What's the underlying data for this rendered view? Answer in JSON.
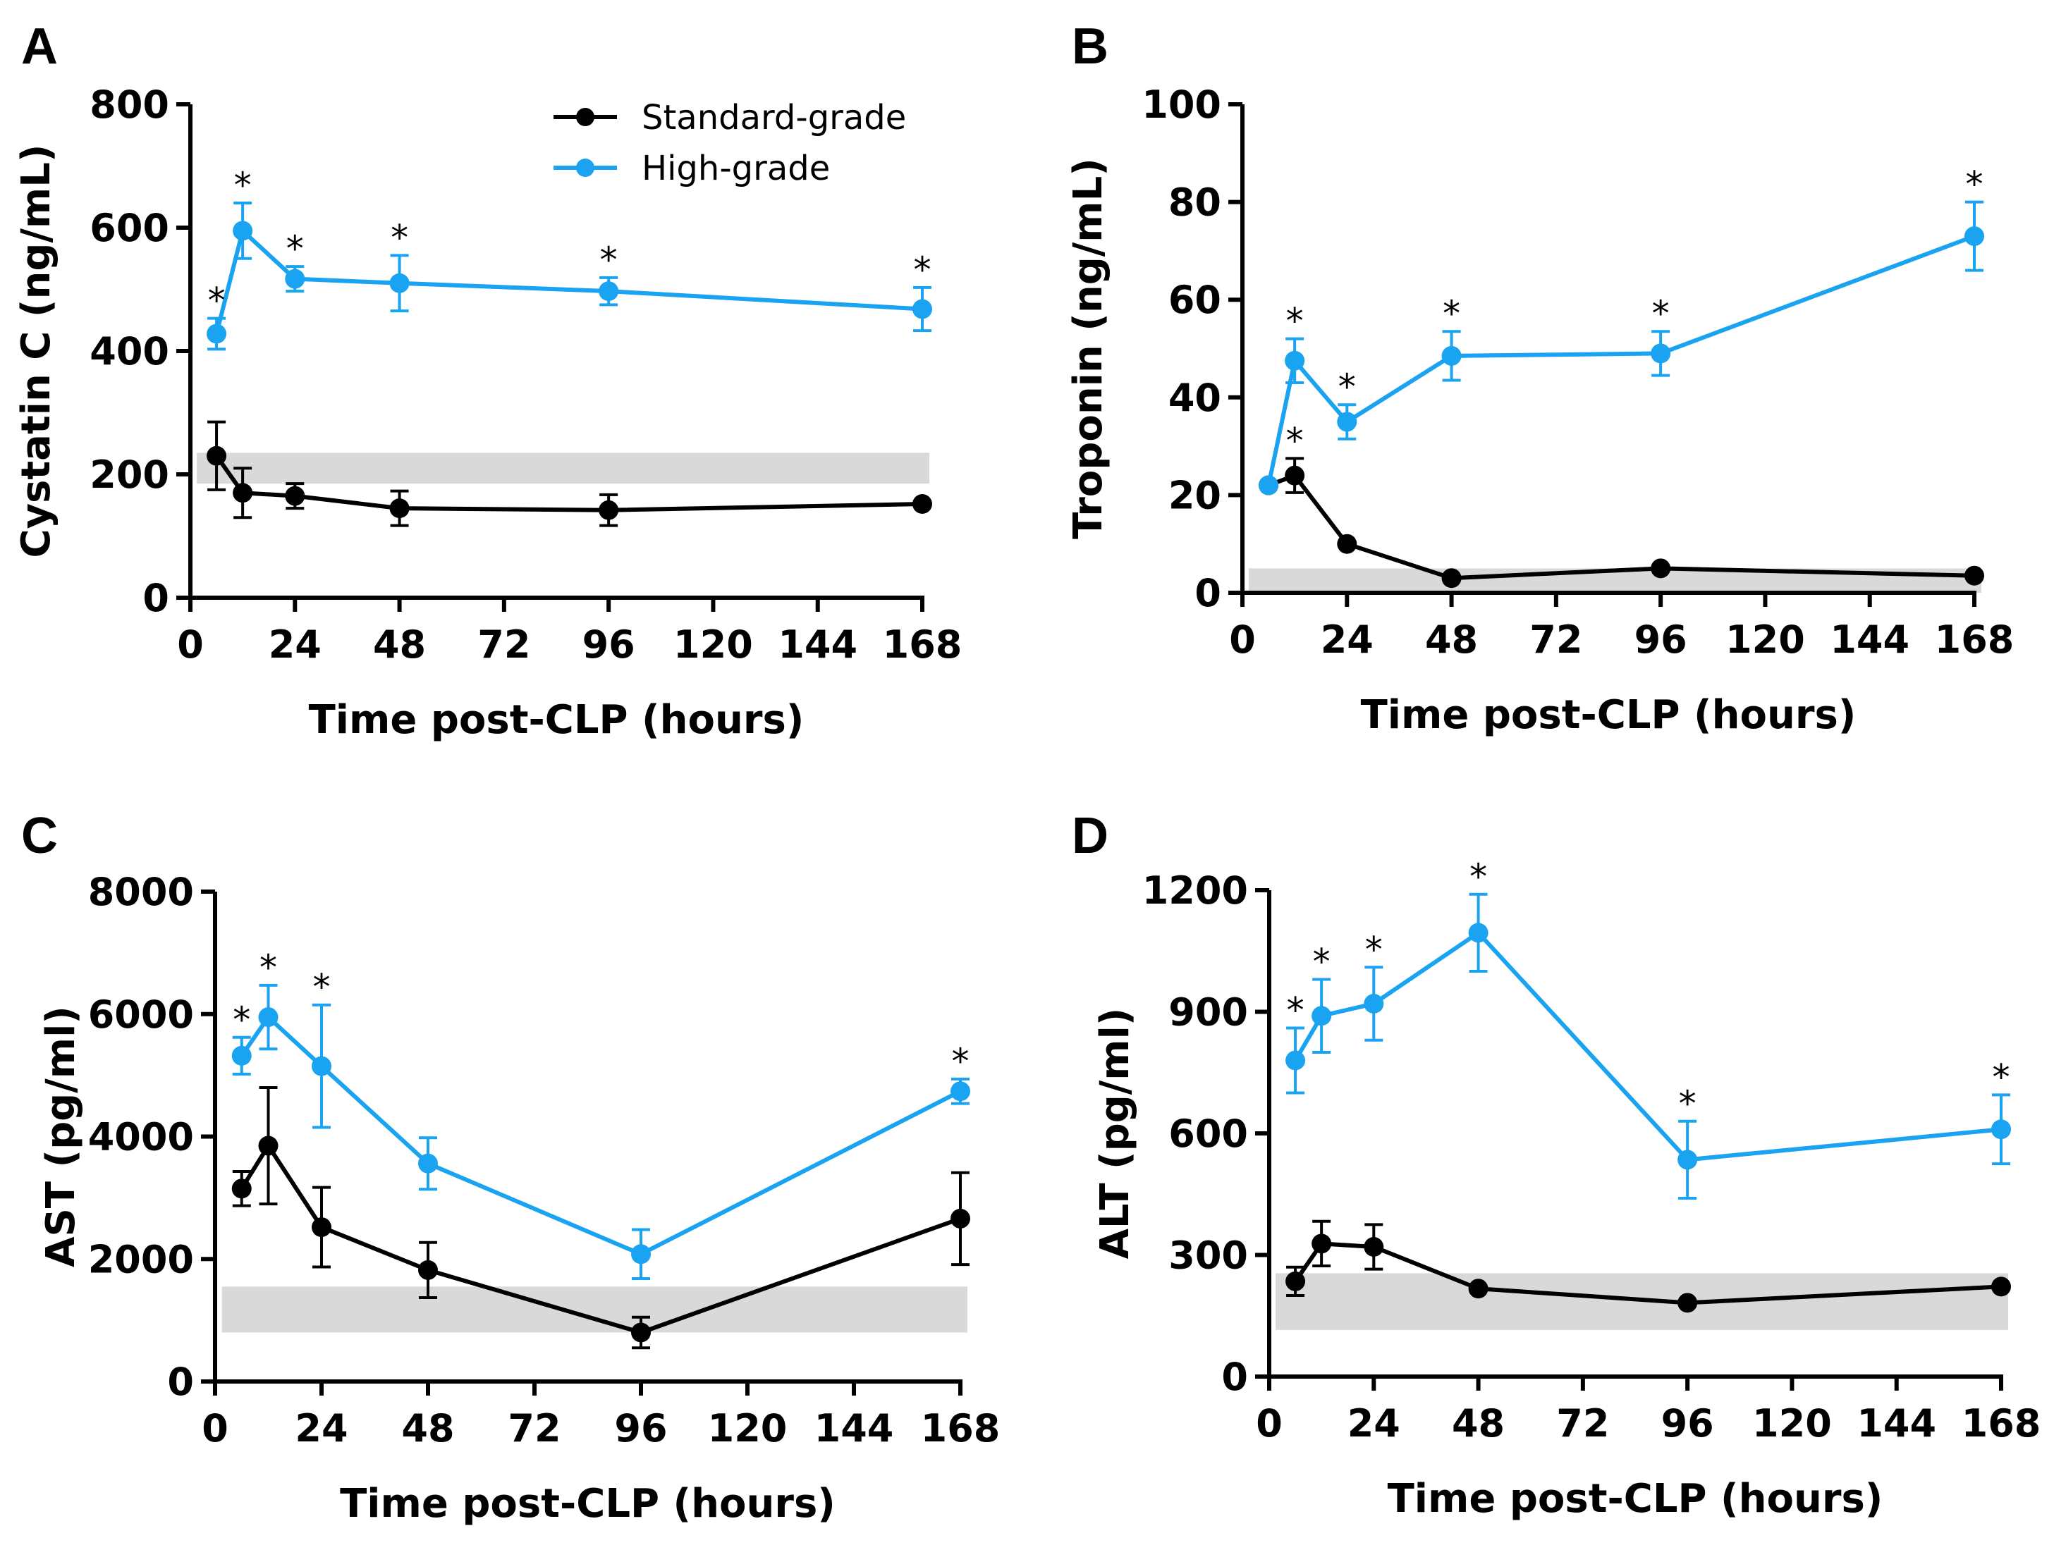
{
  "colors": {
    "standard": "#000000",
    "high": "#1aa3f0",
    "band": "#d9d9d9",
    "axis": "#000000"
  },
  "legend": [
    {
      "name": "Standard-grade",
      "color": "#000000"
    },
    {
      "name": "High-grade",
      "color": "#1aa3f0"
    }
  ],
  "chart_data": [
    {
      "panel": "A",
      "type": "line",
      "xlabel": "Time post-CLP (hours)",
      "ylabel": "Cystatin C (ng/mL)",
      "xlim": [
        0,
        168
      ],
      "ylim": [
        0,
        800
      ],
      "xticks": [
        0,
        24,
        48,
        72,
        96,
        120,
        144,
        168
      ],
      "yticks": [
        0,
        200,
        400,
        600,
        800
      ],
      "normal_range": [
        185,
        235
      ],
      "legend_position": "top-center",
      "series": [
        {
          "name": "Standard-grade",
          "x": [
            6,
            12,
            24,
            48,
            96,
            168
          ],
          "y": [
            230,
            170,
            165,
            145,
            142,
            152
          ],
          "err": [
            55,
            40,
            20,
            28,
            25,
            5
          ],
          "sig": []
        },
        {
          "name": "High-grade",
          "x": [
            6,
            12,
            24,
            48,
            96,
            168
          ],
          "y": [
            428,
            595,
            517,
            510,
            497,
            468
          ],
          "err": [
            25,
            45,
            20,
            45,
            22,
            35
          ],
          "sig": [
            6,
            12,
            24,
            48,
            96,
            168
          ]
        }
      ]
    },
    {
      "panel": "B",
      "type": "line",
      "xlabel": "Time post-CLP (hours)",
      "ylabel": "Troponin (ng/mL)",
      "xlim": [
        0,
        168
      ],
      "ylim": [
        0,
        100
      ],
      "xticks": [
        0,
        24,
        48,
        72,
        96,
        120,
        144,
        168
      ],
      "yticks": [
        0,
        20,
        40,
        60,
        80,
        100
      ],
      "normal_range": [
        0,
        5
      ],
      "series": [
        {
          "name": "Standard-grade",
          "x": [
            6,
            12,
            24,
            48,
            96,
            168
          ],
          "y": [
            22,
            24,
            10,
            3,
            5,
            3.5
          ],
          "err": [
            0.5,
            3.5,
            0.5,
            0.5,
            0.5,
            0.5
          ],
          "sig": [
            12
          ]
        },
        {
          "name": "High-grade",
          "x": [
            6,
            12,
            24,
            48,
            96,
            168
          ],
          "y": [
            22,
            47.5,
            35,
            48.5,
            49,
            73
          ],
          "err": [
            0.5,
            4.5,
            3.5,
            5,
            4.5,
            7
          ],
          "sig": [
            12,
            24,
            48,
            96,
            168
          ]
        }
      ]
    },
    {
      "panel": "C",
      "type": "line",
      "xlabel": "Time post-CLP (hours)",
      "ylabel": "AST (pg/ml)",
      "xlim": [
        0,
        168
      ],
      "ylim": [
        0,
        8000
      ],
      "xticks": [
        0,
        24,
        48,
        72,
        96,
        120,
        144,
        168
      ],
      "yticks": [
        0,
        2000,
        4000,
        6000,
        8000
      ],
      "normal_range": [
        800,
        1550
      ],
      "series": [
        {
          "name": "Standard-grade",
          "x": [
            6,
            12,
            24,
            48,
            96,
            168
          ],
          "y": [
            3150,
            3850,
            2520,
            1820,
            800,
            2660
          ],
          "err": [
            280,
            950,
            650,
            450,
            250,
            750
          ],
          "sig": []
        },
        {
          "name": "High-grade",
          "x": [
            6,
            12,
            24,
            48,
            96,
            168
          ],
          "y": [
            5320,
            5950,
            5150,
            3560,
            2080,
            4740
          ],
          "err": [
            300,
            520,
            1000,
            420,
            400,
            200
          ],
          "sig": [
            6,
            12,
            24,
            168
          ]
        }
      ]
    },
    {
      "panel": "D",
      "type": "line",
      "xlabel": "Time post-CLP (hours)",
      "ylabel": "ALT (pg/ml)",
      "xlim": [
        0,
        168
      ],
      "ylim": [
        0,
        1200
      ],
      "xticks": [
        0,
        24,
        48,
        72,
        96,
        120,
        144,
        168
      ],
      "yticks": [
        0,
        300,
        600,
        900,
        1200
      ],
      "normal_range": [
        115,
        255
      ],
      "series": [
        {
          "name": "Standard-grade",
          "x": [
            6,
            12,
            24,
            48,
            96,
            168
          ],
          "y": [
            235,
            328,
            320,
            217,
            182,
            222
          ],
          "err": [
            35,
            55,
            55,
            10,
            10,
            8
          ],
          "sig": []
        },
        {
          "name": "High-grade",
          "x": [
            6,
            12,
            24,
            48,
            96,
            168
          ],
          "y": [
            780,
            890,
            920,
            1095,
            535,
            610
          ],
          "err": [
            80,
            90,
            90,
            95,
            95,
            85
          ],
          "sig": [
            6,
            12,
            24,
            48,
            96,
            168
          ]
        }
      ]
    }
  ]
}
